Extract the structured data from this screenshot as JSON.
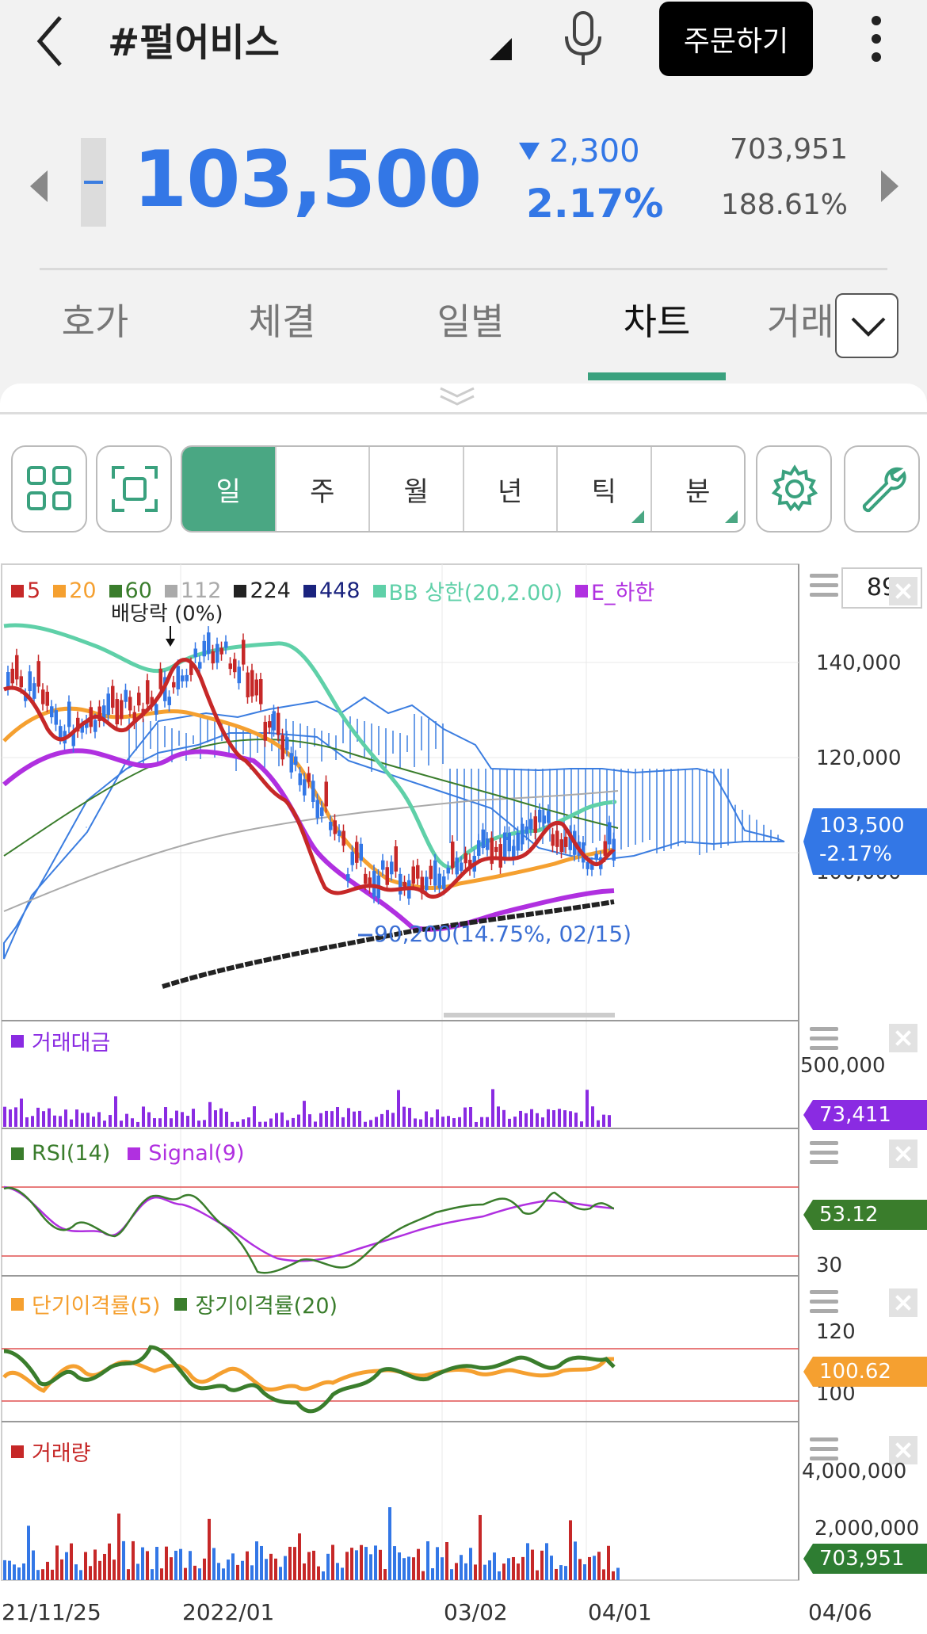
{
  "header": {
    "title": "#펄어비스",
    "order_label": "주문하기"
  },
  "quote": {
    "price": "103,500",
    "change": "2,300",
    "change_pct": "2.17%",
    "volume": "703,951",
    "volume_ratio": "188.61%"
  },
  "tabs": [
    {
      "label": "호가"
    },
    {
      "label": "체결"
    },
    {
      "label": "일별"
    },
    {
      "label": "차트"
    },
    {
      "label": "거래"
    }
  ],
  "periods": [
    {
      "label": "일"
    },
    {
      "label": "주"
    },
    {
      "label": "월"
    },
    {
      "label": "년"
    },
    {
      "label": "틱"
    },
    {
      "label": "분"
    }
  ],
  "colors": {
    "accent": "#3aa17e",
    "up": "#c62828",
    "down": "#3377e6"
  },
  "chart": {
    "zoom": "89",
    "legend": [
      {
        "label": "5",
        "color": "#c62828"
      },
      {
        "label": "20",
        "color": "#f5a030"
      },
      {
        "label": "60",
        "color": "#3a7d2c"
      },
      {
        "label": "112",
        "color": "#aaaaaa"
      },
      {
        "label": "224",
        "color": "#222222"
      },
      {
        "label": "448",
        "color": "#1a237e"
      },
      {
        "label": "BB 상한(20,2.00)",
        "color": "#5fd0a8"
      },
      {
        "label": "E_하한",
        "color": "#b030e0"
      }
    ],
    "annotation_dividend": "배당락 (0%)",
    "annotation_low": "90,200(14.75%, 02/15)",
    "price_ticks": [
      "140,000",
      "120,000",
      "100,000"
    ],
    "price_badge": "103,500",
    "price_badge_pct": "-2.17%",
    "x_labels": [
      "21/11/25",
      "2022/01",
      "03/02",
      "04/01",
      "04/06"
    ]
  },
  "panels": {
    "amount": {
      "title": "거래대금",
      "tick": "500,000",
      "value": "73,411",
      "color": "#8a2be2"
    },
    "rsi": {
      "title": "RSI(14)",
      "signal": "Signal(9)",
      "tick": "30",
      "value": "53.12",
      "color": "#3a7d2c"
    },
    "disparity": {
      "title_short": "단기이격률(5)",
      "title_long": "장기이격률(20)",
      "tick": "120",
      "tick_low": "100",
      "value": "100.62",
      "color": "#f5a030"
    },
    "volume": {
      "title": "거래량",
      "tick_high": "4,000,000",
      "tick_mid": "2,000,000",
      "value": "703,951",
      "color": "#2e7d32"
    }
  },
  "chart_data": {
    "type": "candlestick",
    "x_range": [
      "21/11/25",
      "04/06"
    ],
    "ylim": [
      88000,
      150000
    ],
    "series": [
      {
        "name": "5",
        "values_approx": [
          130000,
          122000,
          126000,
          140000,
          125000,
          112000,
          98000,
          95000,
          100000,
          96000,
          106000,
          104000,
          101000
        ]
      },
      {
        "name": "20",
        "values_approx": [
          120000,
          128000,
          124000,
          128000,
          126000,
          118000,
          104000,
          95000,
          98000,
          96000,
          98000,
          100000,
          103000
        ]
      },
      {
        "name": "BB 상한(20,2.00)",
        "values_approx": [
          148000,
          144000,
          140000,
          146000,
          145000,
          130000,
          114000,
          100000,
          108000,
          110000,
          112000,
          110000
        ]
      },
      {
        "name": "E_하한",
        "values_approx": [
          114000,
          120000,
          118000,
          122000,
          120000,
          108000,
          95000,
          88000,
          90000,
          92000,
          93000,
          94000
        ]
      }
    ],
    "annotations": [
      "배당락 (0%)",
      "90,200(14.75%, 02/15)"
    ],
    "current_price": 103500
  }
}
